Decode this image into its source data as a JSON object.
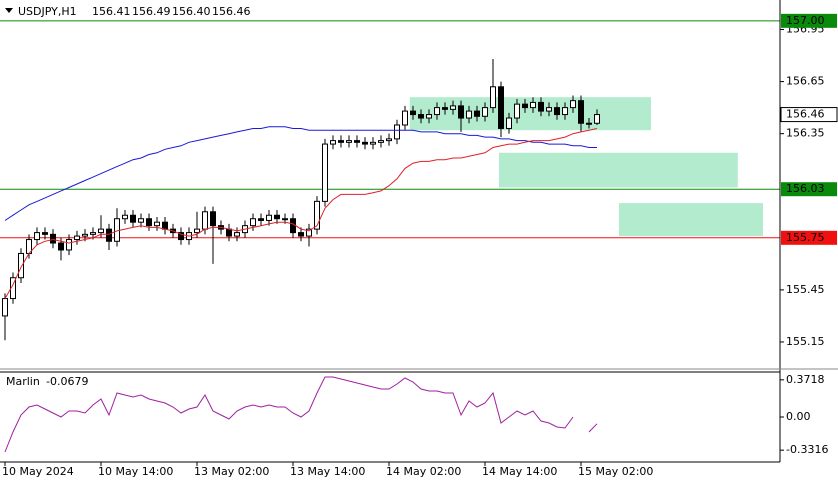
{
  "header": {
    "symbol": "USDJPY,H1",
    "ohlc": [
      156.41,
      156.49,
      {
        "value": 156.4,
        "label": "156.40"
      },
      156.46
    ]
  },
  "chart_data": [
    {
      "type": "candlestick",
      "categories": [
        "10 May 2024",
        null,
        null,
        null,
        null,
        null,
        null,
        null,
        null,
        null,
        null,
        null,
        "10 May 14:00",
        null,
        null,
        null,
        null,
        null,
        null,
        null,
        null,
        null,
        null,
        null,
        "13 May 02:00",
        null,
        null,
        null,
        null,
        null,
        null,
        null,
        null,
        null,
        null,
        null,
        "13 May 14:00",
        null,
        null,
        null,
        null,
        null,
        null,
        null,
        null,
        null,
        null,
        null,
        "14 May 02:00",
        null,
        null,
        null,
        null,
        null,
        null,
        null,
        null,
        null,
        null,
        null,
        "14 May 14:00",
        null,
        null,
        null,
        null,
        null,
        null,
        null,
        null,
        null,
        null,
        null,
        "15 May 02:00",
        null,
        null
      ],
      "open": [
        155.3,
        155.4,
        155.52,
        155.66,
        155.74,
        155.78,
        155.77,
        155.72,
        155.68,
        155.74,
        155.76,
        155.77,
        155.78,
        155.8,
        155.73,
        155.86,
        155.88,
        155.84,
        155.86,
        155.82,
        155.84,
        155.8,
        155.78,
        155.74,
        155.78,
        155.8,
        155.9,
        155.82,
        155.8,
        155.76,
        155.78,
        155.82,
        155.86,
        155.85,
        155.88,
        155.86,
        155.86,
        155.78,
        155.76,
        155.8,
        155.96,
        156.29,
        156.31,
        156.3,
        156.31,
        156.3,
        156.29,
        156.3,
        156.31,
        156.32,
        156.4,
        156.48,
        156.46,
        156.44,
        156.46,
        156.5,
        156.49,
        156.51,
        156.44,
        156.48,
        156.45,
        156.5,
        156.62,
        156.38,
        156.44,
        156.52,
        156.5,
        156.53,
        156.48,
        156.5,
        156.46,
        156.5,
        156.54,
        156.41,
        156.41
      ],
      "high": [
        155.43,
        155.55,
        155.69,
        155.77,
        155.81,
        155.81,
        155.8,
        155.75,
        155.77,
        155.79,
        155.8,
        155.81,
        155.88,
        155.83,
        155.92,
        155.91,
        155.91,
        155.89,
        155.89,
        155.87,
        155.87,
        155.83,
        155.81,
        155.81,
        155.9,
        155.93,
        155.93,
        155.85,
        155.83,
        155.81,
        155.85,
        155.89,
        155.89,
        155.91,
        155.91,
        155.89,
        155.89,
        155.81,
        155.83,
        155.99,
        156.32,
        156.34,
        156.34,
        156.34,
        156.34,
        156.33,
        156.33,
        156.34,
        156.35,
        156.43,
        156.51,
        156.51,
        156.49,
        156.49,
        156.53,
        156.53,
        156.54,
        156.54,
        156.51,
        156.51,
        156.53,
        156.78,
        156.65,
        156.47,
        156.55,
        156.55,
        156.56,
        156.56,
        156.53,
        156.53,
        156.53,
        156.57,
        156.57,
        156.44,
        156.49
      ],
      "low": [
        155.16,
        155.37,
        155.49,
        155.63,
        155.71,
        155.74,
        155.69,
        155.62,
        155.65,
        155.71,
        155.73,
        155.74,
        155.75,
        155.68,
        155.7,
        155.83,
        155.81,
        155.81,
        155.79,
        155.79,
        155.77,
        155.75,
        155.71,
        155.71,
        155.75,
        155.77,
        155.6,
        155.77,
        155.73,
        155.73,
        155.75,
        155.79,
        155.82,
        155.82,
        155.83,
        155.83,
        155.75,
        155.73,
        155.7,
        155.77,
        155.93,
        156.26,
        156.27,
        156.27,
        156.27,
        156.26,
        156.26,
        156.27,
        156.28,
        156.29,
        156.37,
        156.43,
        156.41,
        156.41,
        156.43,
        156.46,
        156.46,
        156.36,
        156.41,
        156.42,
        156.42,
        156.47,
        156.33,
        156.35,
        156.41,
        156.47,
        156.47,
        156.45,
        156.45,
        156.43,
        156.43,
        156.47,
        156.36,
        156.38,
        156.4
      ],
      "close": [
        155.4,
        155.52,
        155.66,
        155.74,
        155.78,
        155.77,
        155.72,
        155.68,
        155.74,
        155.76,
        155.77,
        155.78,
        155.8,
        155.73,
        155.86,
        155.88,
        155.84,
        155.86,
        155.82,
        155.84,
        155.8,
        155.78,
        155.74,
        155.78,
        155.8,
        155.9,
        155.82,
        155.8,
        155.76,
        155.78,
        155.82,
        155.86,
        155.85,
        155.88,
        155.86,
        155.86,
        155.78,
        155.76,
        155.8,
        155.96,
        156.29,
        156.31,
        156.3,
        156.31,
        156.3,
        156.29,
        156.3,
        156.31,
        156.32,
        156.4,
        156.48,
        156.46,
        156.44,
        156.46,
        156.5,
        156.49,
        156.51,
        156.44,
        156.48,
        156.45,
        156.5,
        156.62,
        156.38,
        156.44,
        156.52,
        156.5,
        156.53,
        156.48,
        156.5,
        156.46,
        156.5,
        156.54,
        156.41,
        156.41,
        156.46
      ],
      "series": [
        {
          "color": "#1a1ad6",
          "values": [
            155.85,
            155.88,
            155.91,
            155.94,
            155.96,
            155.98,
            156.0,
            156.02,
            156.04,
            156.06,
            156.08,
            156.1,
            156.12,
            156.14,
            156.16,
            156.18,
            156.2,
            156.21,
            156.23,
            156.24,
            156.26,
            156.27,
            156.28,
            156.3,
            156.31,
            156.32,
            156.33,
            156.34,
            156.35,
            156.36,
            156.37,
            156.38,
            156.38,
            156.39,
            156.39,
            156.39,
            156.38,
            156.38,
            156.37,
            156.37,
            156.37,
            156.37,
            156.37,
            156.37,
            156.37,
            156.37,
            156.37,
            156.37,
            156.37,
            156.37,
            156.37,
            156.37,
            156.36,
            156.36,
            156.36,
            156.35,
            156.35,
            156.35,
            156.34,
            156.34,
            156.33,
            156.33,
            156.32,
            156.32,
            156.31,
            156.31,
            156.3,
            156.3,
            156.29,
            156.29,
            156.29,
            156.28,
            156.28,
            156.27,
            156.27
          ]
        },
        {
          "color": "#e0202a",
          "values": [
            155.4,
            155.48,
            155.58,
            155.66,
            155.71,
            155.73,
            155.74,
            155.73,
            155.72,
            155.73,
            155.74,
            155.75,
            155.77,
            155.77,
            155.79,
            155.8,
            155.81,
            155.82,
            155.81,
            155.81,
            155.8,
            155.79,
            155.77,
            155.76,
            155.77,
            155.8,
            155.81,
            155.81,
            155.8,
            155.79,
            155.8,
            155.81,
            155.82,
            155.83,
            155.84,
            155.84,
            155.83,
            155.8,
            155.79,
            155.82,
            155.92,
            155.97,
            156.0,
            156.0,
            156.0,
            156.0,
            156.01,
            156.02,
            156.05,
            156.09,
            156.15,
            156.18,
            156.19,
            156.19,
            156.2,
            156.2,
            156.21,
            156.21,
            156.22,
            156.23,
            156.24,
            156.27,
            156.28,
            156.29,
            156.29,
            156.3,
            156.31,
            156.31,
            156.31,
            156.32,
            156.33,
            156.35,
            156.36,
            156.37,
            156.38
          ]
        }
      ],
      "zones": [
        {
          "x": [
            50.6,
            80.75
          ],
          "y": [
            156.37,
            156.56
          ],
          "color": "#b3ebcf"
        },
        {
          "x": [
            61.75,
            91.6
          ],
          "y": [
            156.04,
            156.24
          ],
          "color": "#b3ebcf"
        },
        {
          "x": [
            76.75,
            94.75
          ],
          "y": [
            155.76,
            155.95
          ],
          "color": "#b3ebcf"
        }
      ],
      "levels": [
        {
          "value": 157,
          "label": "157.00",
          "color": "#0a8a0a"
        },
        {
          "value": 156.03,
          "color": "#0a8a0a"
        },
        {
          "value": 155.75,
          "color": "#f01010"
        }
      ],
      "last_price": 156.46,
      "xlim": [
        -0.625,
        96.875
      ],
      "ylim": [
        155.0,
        157.12
      ],
      "yticks": [
        156.95,
        156.65,
        156.35,
        155.45,
        155.15
      ]
    },
    {
      "type": "line",
      "name": "Marlin",
      "value": -0.0679,
      "series": [
        {
          "color": "#a020a0",
          "values": [
            -0.35,
            -0.15,
            0.02,
            0.1,
            0.12,
            0.08,
            0.04,
            0.0,
            0.06,
            0.06,
            0.04,
            0.12,
            0.18,
            0.02,
            0.24,
            0.22,
            0.2,
            0.22,
            0.18,
            0.16,
            0.14,
            0.1,
            0.04,
            0.08,
            0.1,
            0.22,
            0.06,
            0.02,
            -0.02,
            0.06,
            0.1,
            0.12,
            0.1,
            0.12,
            0.1,
            0.1,
            0.04,
            0.0,
            0.06,
            0.24,
            0.4,
            0.4,
            0.38,
            0.36,
            0.34,
            0.32,
            0.3,
            0.28,
            0.28,
            0.33,
            0.39,
            0.35,
            0.28,
            0.26,
            0.26,
            0.24,
            0.24,
            0.02,
            0.16,
            0.1,
            0.14,
            0.24,
            -0.06,
            0.0,
            0.06,
            0.02,
            0.06,
            -0.04,
            -0.06,
            -0.1,
            -0.11,
            0.0,
            null,
            -0.15,
            -0.0679
          ]
        }
      ],
      "xlim": [
        -0.625,
        96.875
      ],
      "ylim": [
        -0.45,
        0.45
      ],
      "yticks": [
        0.3718,
        {
          "value": 0,
          "label": "0.00"
        },
        -0.3316
      ]
    }
  ]
}
